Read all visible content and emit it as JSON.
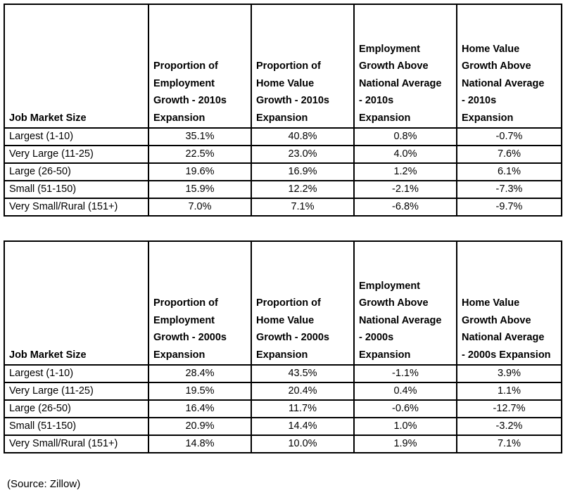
{
  "tables": [
    {
      "headers": [
        "Job Market Size",
        "Proportion of Employment Growth - 2010s Expansion",
        "Proportion of Home Value Growth - 2010s Expansion",
        "Employment Growth Above National Average - 2010s Expansion",
        "Home Value Growth Above National Average - 2010s Expansion"
      ],
      "rows": [
        [
          "Largest (1-10)",
          "35.1%",
          "40.8%",
          "0.8%",
          "-0.7%"
        ],
        [
          "Very Large (11-25)",
          "22.5%",
          "23.0%",
          "4.0%",
          "7.6%"
        ],
        [
          "Large (26-50)",
          "19.6%",
          "16.9%",
          "1.2%",
          "6.1%"
        ],
        [
          "Small (51-150)",
          "15.9%",
          "12.2%",
          "-2.1%",
          "-7.3%"
        ],
        [
          "Very Small/Rural (151+)",
          "7.0%",
          "7.1%",
          "-6.8%",
          "-9.7%"
        ]
      ]
    },
    {
      "headers": [
        "Job Market Size",
        "Proportion of Employment Growth - 2000s Expansion",
        "Proportion of Home Value Growth - 2000s Expansion",
        "Employment Growth Above National Average - 2000s Expansion",
        "Home Value Growth Above National Average - 2000s Expansion"
      ],
      "rows": [
        [
          "Largest (1-10)",
          "28.4%",
          "43.5%",
          "-1.1%",
          "3.9%"
        ],
        [
          "Very Large (11-25)",
          "19.5%",
          "20.4%",
          "0.4%",
          "1.1%"
        ],
        [
          "Large (26-50)",
          "16.4%",
          "11.7%",
          "-0.6%",
          "-12.7%"
        ],
        [
          "Small (51-150)",
          "20.9%",
          "14.4%",
          "1.0%",
          "-3.2%"
        ],
        [
          "Very Small/Rural (151+)",
          "14.8%",
          "10.0%",
          "1.9%",
          "7.1%"
        ]
      ]
    }
  ],
  "source_note": "(Source: Zillow)"
}
